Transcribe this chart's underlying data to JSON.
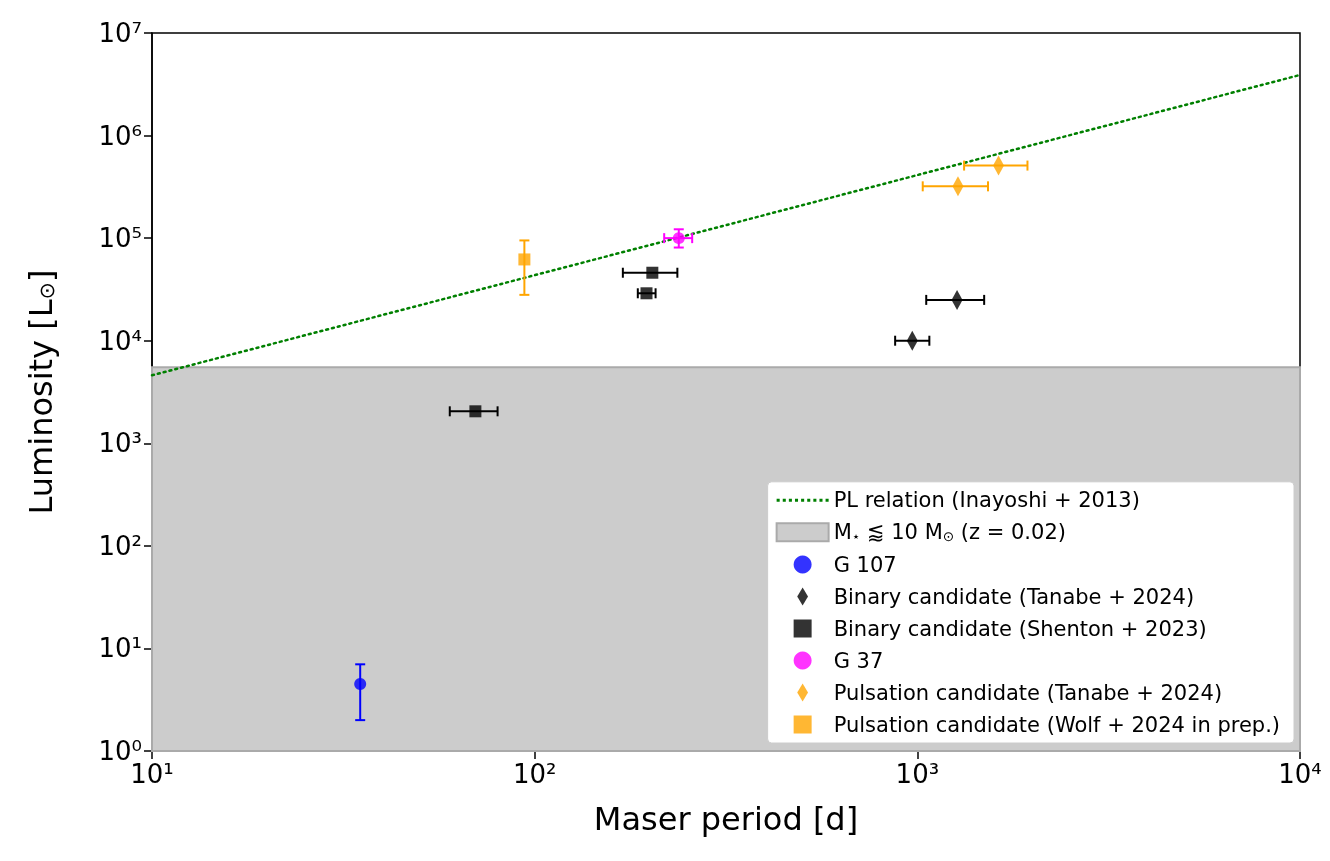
{
  "chart_data": {
    "type": "scatter",
    "xlabel": "Maser period [d]",
    "ylabel": "Luminosity [L$_{⊙}$]",
    "log": "xy",
    "grid": false,
    "legend": "bottom right",
    "xlim": [
      10,
      10000
    ],
    "ylim": [
      1,
      10000000
    ],
    "xticks": [
      {
        "value": 10,
        "label": "10¹"
      },
      {
        "value": 100,
        "label": "10²"
      },
      {
        "value": 1000,
        "label": "10³"
      },
      {
        "value": 10000,
        "label": "10⁴"
      }
    ],
    "yticks": [
      {
        "value": 1,
        "label": "10⁰"
      },
      {
        "value": 10,
        "label": "10¹"
      },
      {
        "value": 100,
        "label": "10²"
      },
      {
        "value": 1000,
        "label": "10³"
      },
      {
        "value": 10000,
        "label": "10⁴"
      },
      {
        "value": 100000,
        "label": "10⁵"
      },
      {
        "value": 1000000,
        "label": "10⁶"
      },
      {
        "value": 10000000,
        "label": "10⁷"
      }
    ],
    "bands": [
      {
        "axis": "y",
        "from": 1,
        "to": 5500,
        "label": "M$_{⋆}$ ⪅ 10 M$_{⊙}$ (z = 0.02)",
        "color": "#cccccc"
      }
    ],
    "series": [
      {
        "name": "PL relation (Inayoshi + 2013)",
        "type": "line",
        "color": "#008000",
        "line_style": "dotted",
        "marker": "none",
        "x": [
          10,
          10000
        ],
        "values": [
          4600,
          3900000
        ]
      },
      {
        "name": "G 107",
        "color": "#0000ff",
        "marker": "circle",
        "x": [
          35
        ],
        "values": [
          4.5
        ],
        "errors": [
          [
            2,
            7
          ]
        ],
        "xerrors": [
          null
        ]
      },
      {
        "name": "Binary candidate (Tanabe + 2024)",
        "color": "#000000",
        "marker": "diamond",
        "x": [
          970,
          1270
        ],
        "values": [
          10000,
          25000
        ],
        "errors": [
          null,
          null
        ],
        "xerrors": [
          [
            875,
            1075
          ],
          [
            1055,
            1495
          ]
        ]
      },
      {
        "name": "Binary candidate (Shenton + 2023)",
        "color": "#000000",
        "marker": "square",
        "x": [
          70,
          196,
          203
        ],
        "values": [
          2050,
          29000,
          46000
        ],
        "errors": [
          null,
          null,
          null
        ],
        "xerrors": [
          [
            60,
            80
          ],
          [
            186,
            207
          ],
          [
            170,
            236
          ]
        ]
      },
      {
        "name": "G 37",
        "color": "#ff00ff",
        "marker": "circle",
        "x": [
          238
        ],
        "values": [
          100000
        ],
        "errors": [
          [
            81000,
            122000
          ]
        ],
        "xerrors": [
          [
            218,
            258
          ]
        ]
      },
      {
        "name": "Pulsation candidate (Tanabe + 2024)",
        "color": "#ffa500",
        "marker": "diamond",
        "x": [
          1277,
          1630
        ],
        "values": [
          320000,
          510000
        ],
        "errors": [
          null,
          null
        ],
        "xerrors": [
          [
            1033,
            1530
          ],
          [
            1325,
            1940
          ]
        ]
      },
      {
        "name": "Pulsation candidate (Wolf + 2024 in prep.)",
        "color": "#ffa500",
        "marker": "square",
        "x": [
          94
        ],
        "values": [
          62000
        ],
        "errors": [
          [
            28000,
            95000
          ]
        ],
        "xerrors": [
          null
        ]
      }
    ]
  }
}
